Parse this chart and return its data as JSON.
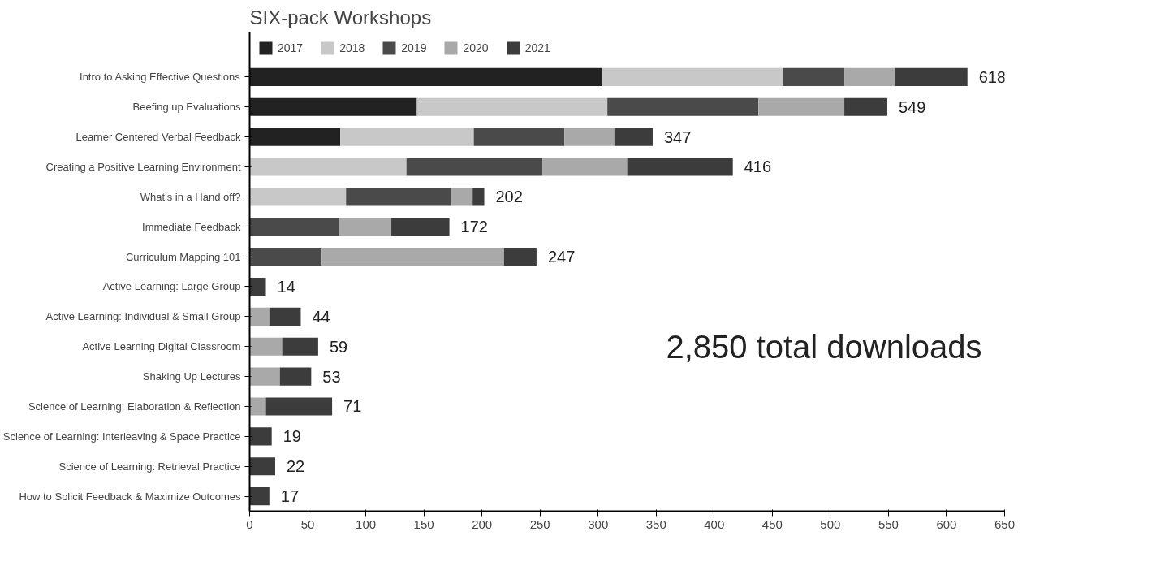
{
  "chart_data": {
    "type": "bar",
    "orientation": "horizontal",
    "stacked": true,
    "title": "SIX-pack Workshops",
    "categories": [
      "Intro to Asking Effective Questions",
      "Beefing up Evaluations",
      "Learner Centered Verbal Feedback",
      "Creating a Positive Learning Environment",
      "What's in a Hand off?",
      "Immediate Feedback",
      "Curriculum Mapping 101",
      "Active Learning: Large Group",
      "Active Learning: Individual & Small Group",
      "Active Learning Digital Classroom",
      "Shaking Up Lectures",
      "Science of Learning: Elaboration & Reflection",
      "Science of Learning: Interleaving & Space Practice",
      "Science of Learning: Retrieval Practice",
      "How to Solicit Feedback & Maximize Outcomes"
    ],
    "series": [
      {
        "name": "2017",
        "color": "#222222",
        "values": [
          303,
          144,
          78,
          null,
          null,
          null,
          null,
          null,
          null,
          null,
          null,
          null,
          null,
          null,
          null
        ]
      },
      {
        "name": "2018",
        "color": "#c8c8c8",
        "values": [
          156,
          164,
          115,
          135,
          83,
          null,
          null,
          null,
          null,
          null,
          null,
          null,
          null,
          null,
          null
        ]
      },
      {
        "name": "2019",
        "color": "#4a4a4a",
        "values": [
          53,
          130,
          78,
          117,
          91,
          77,
          62,
          null,
          null,
          null,
          null,
          null,
          null,
          null,
          null
        ]
      },
      {
        "name": "2020",
        "color": "#a9a9a9",
        "values": [
          44,
          74,
          43,
          73,
          18,
          45,
          157,
          null,
          17,
          28,
          26,
          14,
          null,
          null,
          null
        ]
      },
      {
        "name": "2021",
        "color": "#3c3c3c",
        "values": [
          62,
          37,
          33,
          91,
          10,
          50,
          28,
          14,
          27,
          31,
          27,
          57,
          19,
          22,
          17
        ]
      }
    ],
    "totals": [
      "618",
      "549",
      "347",
      "416",
      "202",
      "172",
      "247",
      "14",
      "44",
      "59",
      "53",
      "71",
      "19",
      "22",
      "17"
    ],
    "xlim": [
      0,
      650
    ],
    "xticks": [
      0,
      50,
      100,
      150,
      200,
      250,
      300,
      350,
      400,
      450,
      500,
      550,
      600,
      650
    ],
    "grid": false,
    "legend": "top",
    "annotations": [
      "2,850 total downloads"
    ]
  }
}
